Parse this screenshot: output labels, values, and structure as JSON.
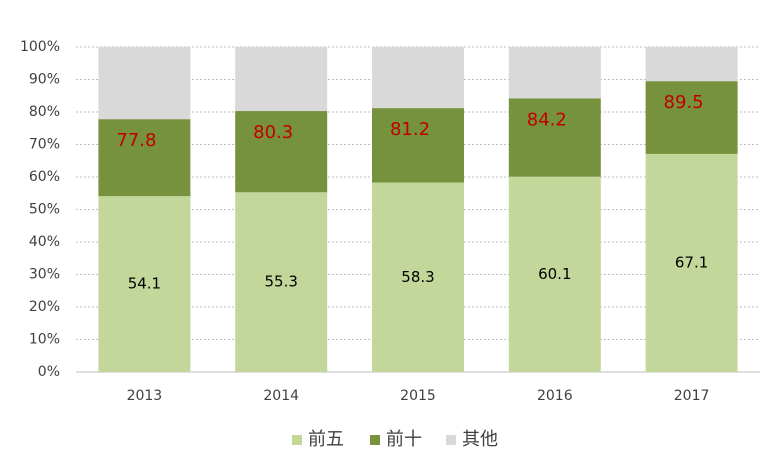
{
  "chart_data": {
    "type": "stacked_bar",
    "categories": [
      "2013",
      "2014",
      "2015",
      "2016",
      "2017"
    ],
    "series": [
      {
        "name": "前五",
        "color": "#c4d79b",
        "values": [
          54.1,
          55.3,
          58.3,
          60.1,
          67.1
        ]
      },
      {
        "name": "前十",
        "color": "#76923c",
        "values": [
          23.7,
          25.0,
          22.9,
          24.1,
          22.4
        ]
      },
      {
        "name": "其他",
        "color": "#d9d9d9",
        "values": [
          22.2,
          19.7,
          18.8,
          15.8,
          10.5
        ]
      }
    ],
    "top_labels": [
      77.8,
      80.3,
      81.2,
      84.2,
      89.5
    ],
    "top_label_color": "#c00000",
    "ylim": [
      0,
      100
    ],
    "yticks": [
      {
        "value": 0,
        "label": "0%"
      },
      {
        "value": 10,
        "label": "10%"
      },
      {
        "value": 20,
        "label": "20%"
      },
      {
        "value": 30,
        "label": "30%"
      },
      {
        "value": 40,
        "label": "40%"
      },
      {
        "value": 50,
        "label": "50%"
      },
      {
        "value": 60,
        "label": "60%"
      },
      {
        "value": 70,
        "label": "70%"
      },
      {
        "value": 80,
        "label": "80%"
      },
      {
        "value": 90,
        "label": "90%"
      },
      {
        "value": 100,
        "label": "100%"
      }
    ],
    "grid": true,
    "legend": "bottom"
  }
}
